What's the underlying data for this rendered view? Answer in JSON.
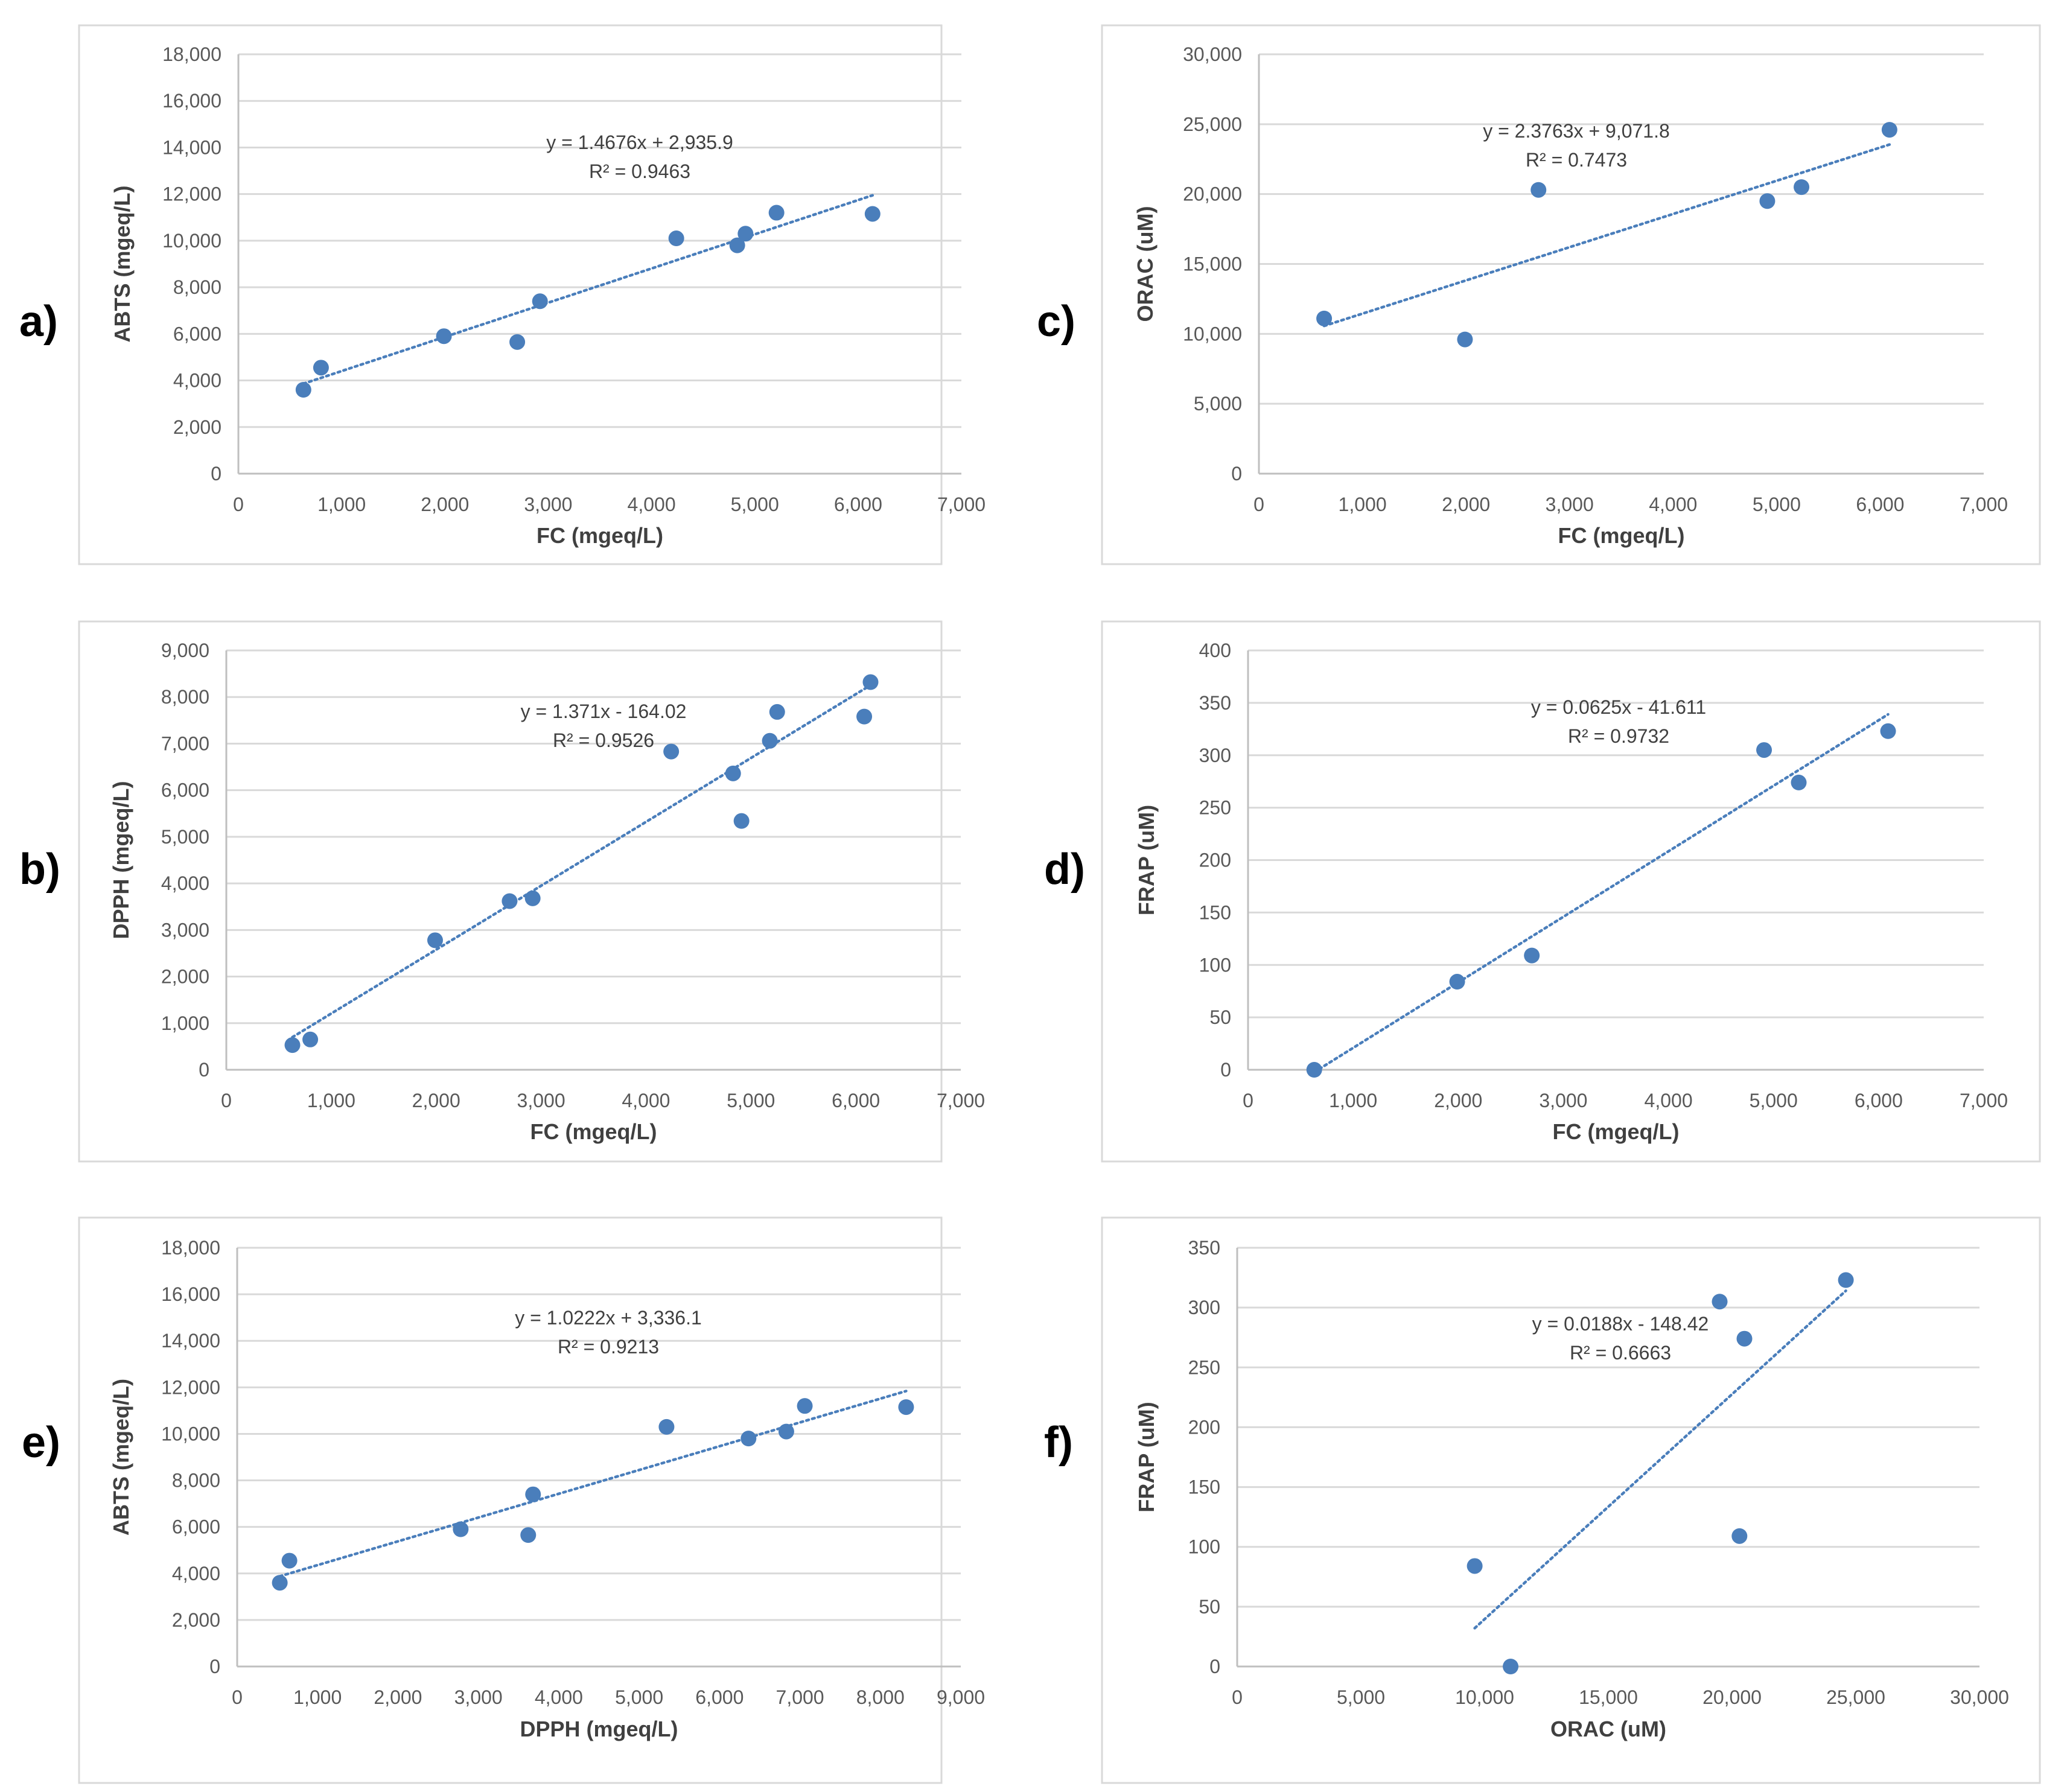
{
  "colors": {
    "marker": "#4a7ebb",
    "trendline": "#4a7ebb"
  },
  "chart_data": [
    {
      "id": "a",
      "panel_label": "a)",
      "type": "scatter",
      "xlabel": "FC (mgeq/L)",
      "ylabel": "ABTS (mgeq/L)",
      "xlim": [
        0,
        7000
      ],
      "ylim": [
        0,
        18000
      ],
      "x_ticks": [
        "0",
        "1,000",
        "2,000",
        "3,000",
        "4,000",
        "5,000",
        "6,000",
        "7,000"
      ],
      "y_ticks": [
        "0",
        "2,000",
        "4,000",
        "6,000",
        "8,000",
        "10,000",
        "12,000",
        "14,000",
        "16,000",
        "18,000"
      ],
      "points": [
        [
          630,
          3600
        ],
        [
          800,
          4550
        ],
        [
          1990,
          5900
        ],
        [
          2700,
          5650
        ],
        [
          2920,
          7400
        ],
        [
          4240,
          10100
        ],
        [
          4830,
          9800
        ],
        [
          4910,
          10300
        ],
        [
          5210,
          11200
        ],
        [
          6140,
          11150
        ]
      ],
      "trendline": {
        "slope": 1.4676,
        "intercept": 2935.9,
        "x_range": [
          630,
          6140
        ]
      },
      "equation": "y = 1.4676x + 2,935.9",
      "r_squared": "R² = 0.9463"
    },
    {
      "id": "c",
      "panel_label": "c)",
      "type": "scatter",
      "xlabel": "FC (mgeq/L)",
      "ylabel": "ORAC (uM)",
      "xlim": [
        0,
        7000
      ],
      "ylim": [
        0,
        30000
      ],
      "x_ticks": [
        "0",
        "1,000",
        "2,000",
        "3,000",
        "4,000",
        "5,000",
        "6,000",
        "7,000"
      ],
      "y_ticks": [
        "0",
        "5,000",
        "10,000",
        "15,000",
        "20,000",
        "25,000",
        "30,000"
      ],
      "points": [
        [
          630,
          11100
        ],
        [
          1990,
          9600
        ],
        [
          2700,
          20300
        ],
        [
          4910,
          19500
        ],
        [
          5240,
          20500
        ],
        [
          6090,
          24600
        ]
      ],
      "trendline": {
        "slope": 2.3763,
        "intercept": 9071.8,
        "x_range": [
          630,
          6090
        ]
      },
      "equation": "y = 2.3763x + 9,071.8",
      "r_squared": "R² = 0.7473"
    },
    {
      "id": "b",
      "panel_label": "b)",
      "type": "scatter",
      "xlabel": "FC (mgeq/L)",
      "ylabel": "DPPH (mgeq/L)",
      "xlim": [
        0,
        7000
      ],
      "ylim": [
        0,
        9000
      ],
      "x_ticks": [
        "0",
        "1,000",
        "2,000",
        "3,000",
        "4,000",
        "5,000",
        "6,000",
        "7,000"
      ],
      "y_ticks": [
        "0",
        "1,000",
        "2,000",
        "3,000",
        "4,000",
        "5,000",
        "6,000",
        "7,000",
        "8,000",
        "9,000"
      ],
      "points": [
        [
          630,
          530
        ],
        [
          800,
          650
        ],
        [
          1990,
          2780
        ],
        [
          2700,
          3620
        ],
        [
          2920,
          3680
        ],
        [
          4240,
          6830
        ],
        [
          4830,
          6360
        ],
        [
          4910,
          5340
        ],
        [
          5180,
          7060
        ],
        [
          5250,
          7680
        ],
        [
          6080,
          7580
        ],
        [
          6140,
          8320
        ]
      ],
      "trendline": {
        "slope": 1.371,
        "intercept": -164.02,
        "x_range": [
          630,
          6140
        ]
      },
      "equation": "y = 1.371x - 164.02",
      "r_squared": "R² = 0.9526"
    },
    {
      "id": "d",
      "panel_label": "d)",
      "type": "scatter",
      "xlabel": "FC (mgeq/L)",
      "ylabel": "FRAP (uM)",
      "xlim": [
        0,
        7000
      ],
      "ylim": [
        0,
        400
      ],
      "x_ticks": [
        "0",
        "1,000",
        "2,000",
        "3,000",
        "4,000",
        "5,000",
        "6,000",
        "7,000"
      ],
      "y_ticks": [
        "0",
        "50",
        "100",
        "150",
        "200",
        "250",
        "300",
        "350",
        "400"
      ],
      "points": [
        [
          630,
          0
        ],
        [
          1990,
          84
        ],
        [
          2700,
          109
        ],
        [
          4910,
          305
        ],
        [
          5240,
          274
        ],
        [
          6090,
          323
        ]
      ],
      "trendline": {
        "slope": 0.0625,
        "intercept": -41.611,
        "x_range": [
          630,
          6090
        ]
      },
      "equation": "y = 0.0625x - 41.611",
      "r_squared": "R² = 0.9732"
    },
    {
      "id": "e",
      "panel_label": "e)",
      "type": "scatter",
      "xlabel": "DPPH (mgeq/L)",
      "ylabel": "ABTS (mgeq/L)",
      "xlim": [
        0,
        9000
      ],
      "ylim": [
        0,
        18000
      ],
      "x_ticks": [
        "0",
        "1,000",
        "2,000",
        "3,000",
        "4,000",
        "5,000",
        "6,000",
        "7,000",
        "8,000",
        "9,000"
      ],
      "y_ticks": [
        "0",
        "2,000",
        "4,000",
        "6,000",
        "8,000",
        "10,000",
        "12,000",
        "14,000",
        "16,000",
        "18,000"
      ],
      "points": [
        [
          530,
          3600
        ],
        [
          650,
          4550
        ],
        [
          2780,
          5900
        ],
        [
          3620,
          5650
        ],
        [
          3680,
          7400
        ],
        [
          5340,
          10300
        ],
        [
          6360,
          9800
        ],
        [
          6830,
          10100
        ],
        [
          7060,
          11200
        ],
        [
          8320,
          11150
        ]
      ],
      "trendline": {
        "slope": 1.0222,
        "intercept": 3336.1,
        "x_range": [
          530,
          8320
        ]
      },
      "equation": "y = 1.0222x + 3,336.1",
      "r_squared": "R² = 0.9213"
    },
    {
      "id": "f",
      "panel_label": "f)",
      "type": "scatter",
      "xlabel": "ORAC (uM)",
      "ylabel": "FRAP (uM)",
      "xlim": [
        0,
        30000
      ],
      "ylim": [
        0,
        350
      ],
      "x_ticks": [
        "0",
        "5,000",
        "10,000",
        "15,000",
        "20,000",
        "25,000",
        "30,000"
      ],
      "y_ticks": [
        "0",
        "50",
        "100",
        "150",
        "200",
        "250",
        "300",
        "350"
      ],
      "points": [
        [
          9600,
          84
        ],
        [
          11050,
          0
        ],
        [
          19500,
          305
        ],
        [
          20300,
          109
        ],
        [
          20500,
          274
        ],
        [
          24600,
          323
        ]
      ],
      "trendline": {
        "slope": 0.0188,
        "intercept": -148.42,
        "x_range": [
          9600,
          24600
        ]
      },
      "equation": "y = 0.0188x - 148.42",
      "r_squared": "R² = 0.6663"
    }
  ]
}
